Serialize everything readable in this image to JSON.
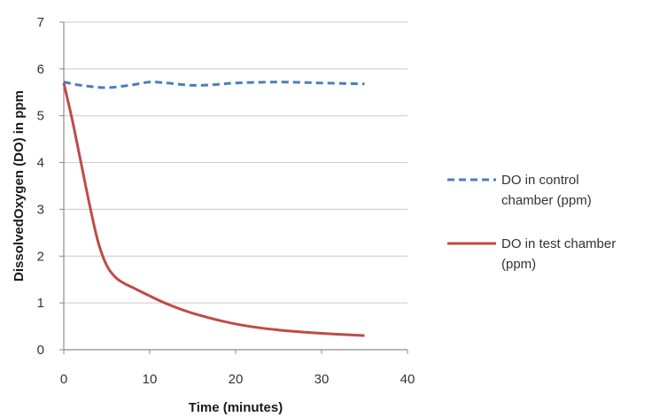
{
  "chart_data": {
    "type": "line",
    "title": "",
    "xlabel": "Time (minutes)",
    "ylabel": "DissolvedOxygen (DO) in ppm",
    "xlim": [
      0,
      40
    ],
    "ylim": [
      0,
      7
    ],
    "xticks": [
      "0",
      "10",
      "20",
      "30",
      "40"
    ],
    "yticks": [
      "0",
      "1",
      "2",
      "3",
      "4",
      "5",
      "6",
      "7"
    ],
    "grid": "horizontal",
    "legend_position": "right",
    "series": [
      {
        "name": "DO in control chamber (ppm)",
        "legend_lines": [
          "DO in control",
          "chamber (ppm)"
        ],
        "color": "#4a7ebb",
        "style": "dashed",
        "x": [
          0,
          2,
          5,
          8,
          10,
          12,
          15,
          18,
          20,
          25,
          30,
          35
        ],
        "y": [
          5.72,
          5.65,
          5.6,
          5.66,
          5.72,
          5.7,
          5.65,
          5.67,
          5.7,
          5.72,
          5.7,
          5.68
        ]
      },
      {
        "name": "DO in test chamber (ppm)",
        "legend_lines": [
          "DO in test chamber",
          "(ppm)"
        ],
        "color": "#be4b48",
        "style": "solid",
        "x": [
          0,
          1,
          2,
          3,
          4,
          5,
          6,
          7,
          8,
          10,
          12,
          15,
          20,
          25,
          30,
          35
        ],
        "y": [
          5.7,
          4.9,
          4.0,
          3.1,
          2.3,
          1.8,
          1.55,
          1.42,
          1.33,
          1.15,
          0.98,
          0.78,
          0.55,
          0.42,
          0.35,
          0.3
        ]
      }
    ]
  }
}
